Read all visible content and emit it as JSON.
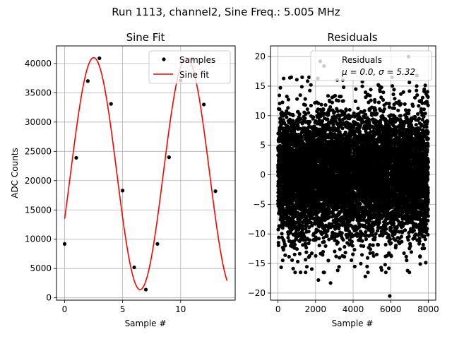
{
  "figure": {
    "suptitle": "Run 1113, channel2, Sine Freq.: 5.005 MHz"
  },
  "colors": {
    "fit_line": "#ff0000",
    "markers": "#000000",
    "grid": "#b0b0b0"
  },
  "chart_data": [
    {
      "type": "line",
      "title": "Sine Fit",
      "xlabel": "Sample #",
      "ylabel": "ADC Counts",
      "xlim": [
        -0.7,
        14.7
      ],
      "ylim": [
        -400,
        43000
      ],
      "xticks": [
        0,
        5,
        10
      ],
      "xtick_labels": [
        "0",
        "5",
        "10"
      ],
      "yticks": [
        0,
        5000,
        10000,
        15000,
        20000,
        25000,
        30000,
        35000,
        40000
      ],
      "ytick_labels": [
        "0",
        "5000",
        "10000",
        "15000",
        "20000",
        "25000",
        "30000",
        "35000",
        "40000"
      ],
      "grid": true,
      "legend": {
        "placement": "upper-right",
        "entries": [
          "Samples",
          "Sine fit"
        ]
      },
      "series": [
        {
          "name": "Samples",
          "kind": "scatter",
          "color": "#000000",
          "x": [
            0,
            1,
            2,
            3,
            4,
            5,
            6,
            7,
            8,
            9,
            10,
            11,
            12,
            13
          ],
          "y": [
            9200,
            23900,
            37000,
            40900,
            33100,
            18300,
            5200,
            1400,
            9200,
            24000,
            37100,
            40800,
            33000,
            18200
          ]
        },
        {
          "name": "Sine fit",
          "kind": "line",
          "color": "#ff0000",
          "model": {
            "form": "offset + amplitude*sin(2*pi*cycles_per_sample*x + phase)",
            "offset": 21200,
            "amplitude": 19800,
            "cycles_per_sample": 0.12508,
            "phase": -0.4
          },
          "x_range": [
            0,
            14
          ]
        }
      ]
    },
    {
      "type": "scatter",
      "title": "Residuals",
      "xlabel": "Sample #",
      "ylabel": "",
      "xlim": [
        -400,
        8400
      ],
      "ylim": [
        -21.2,
        21.8
      ],
      "xticks": [
        0,
        2000,
        4000,
        6000,
        8000
      ],
      "xtick_labels": [
        "0",
        "2000",
        "4000",
        "6000",
        "8000"
      ],
      "yticks": [
        -20,
        -15,
        -10,
        -5,
        0,
        5,
        10,
        15,
        20
      ],
      "ytick_labels": [
        "−20",
        "−15",
        "−10",
        "−5",
        "0",
        "5",
        "10",
        "15",
        "20"
      ],
      "grid": true,
      "legend": {
        "placement": "upper-right",
        "entries": [
          "Residuals",
          "μ = 0.0, σ = 5.32"
        ]
      },
      "series": [
        {
          "name": "Residuals",
          "color": "#000000",
          "n_points": 8000,
          "x_range": [
            0,
            7999
          ],
          "distribution": {
            "mean": 0.0,
            "sigma": 5.32
          },
          "outliers": [
            {
              "x": 2250,
              "y": 19.2
            },
            {
              "x": 6950,
              "y": 20.0
            },
            {
              "x": 2450,
              "y": 18.4
            },
            {
              "x": 5950,
              "y": -20.5
            },
            {
              "x": 4650,
              "y": -17.2
            },
            {
              "x": 2150,
              "y": -17.8
            },
            {
              "x": 2800,
              "y": -18.3
            },
            {
              "x": 5900,
              "y": -15.8
            },
            {
              "x": 6900,
              "y": -16.2
            },
            {
              "x": 300,
              "y": 16.3
            },
            {
              "x": 7400,
              "y": 16.8
            },
            {
              "x": 1200,
              "y": -16.5
            }
          ]
        }
      ],
      "legend_text": {
        "label": "Residuals",
        "stats_mu": "μ = 0.0, ",
        "stats_sigma": "σ = 5.32"
      }
    }
  ]
}
